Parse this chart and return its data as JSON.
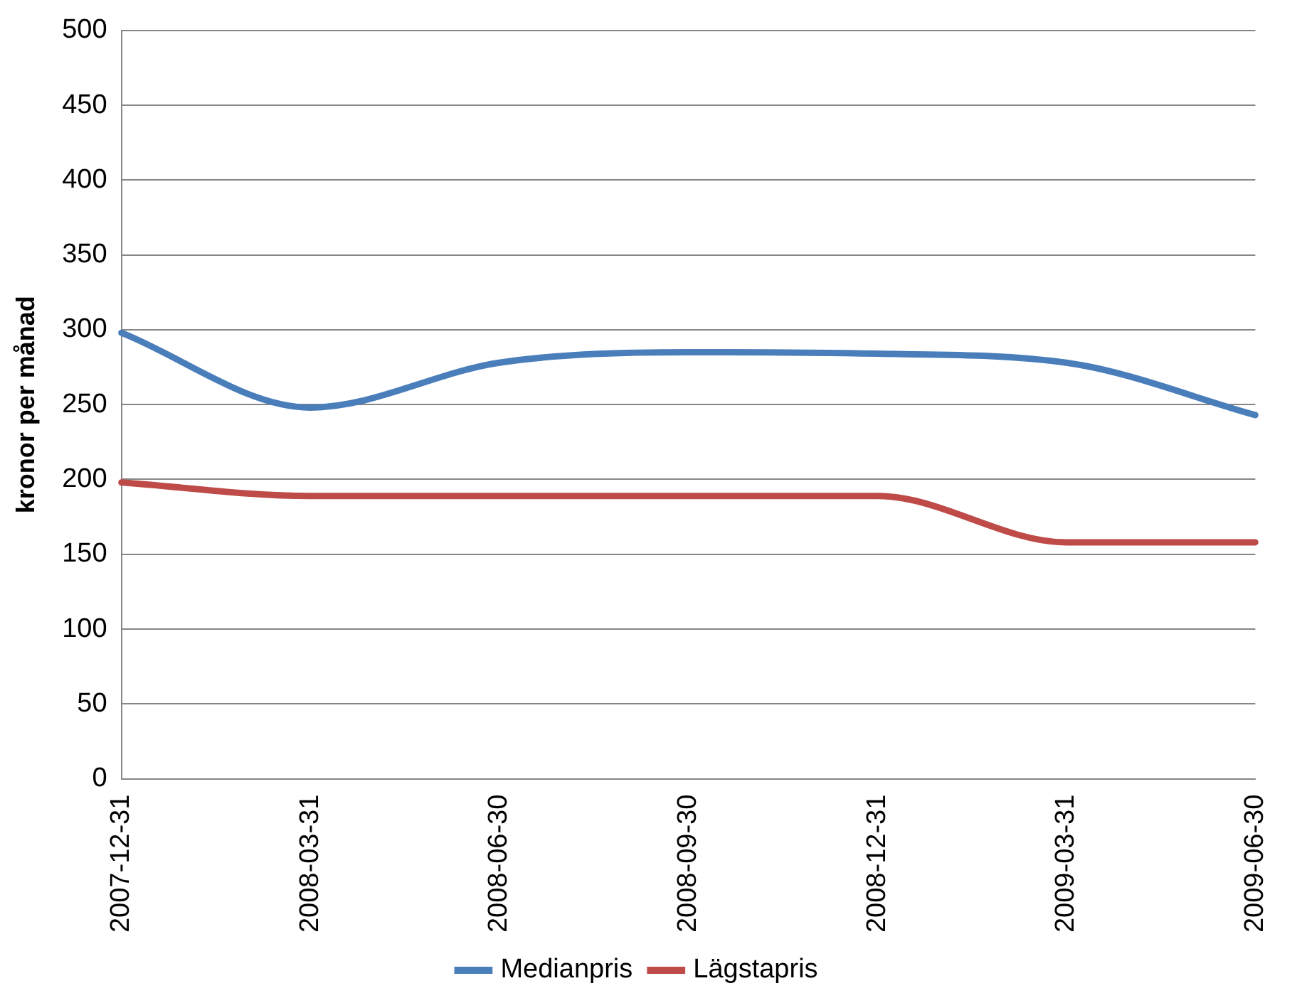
{
  "chart_data": {
    "type": "line",
    "ylabel": "kronor per månad",
    "categories": [
      "2007-12-31",
      "2008-03-31",
      "2008-06-30",
      "2008-09-30",
      "2008-12-31",
      "2009-03-31",
      "2009-06-30"
    ],
    "series": [
      {
        "name": "Medianpris",
        "color": "#4a7ebb",
        "values": [
          298,
          248,
          278,
          285,
          284,
          278,
          243
        ]
      },
      {
        "name": "Lägstapris",
        "color": "#be4b48",
        "values": [
          198,
          189,
          189,
          189,
          189,
          158,
          158
        ]
      }
    ],
    "ylim": [
      0,
      500
    ],
    "yticks": [
      0,
      50,
      100,
      150,
      200,
      250,
      300,
      350,
      400,
      450,
      500
    ],
    "grid": "y",
    "legend": "bottom",
    "marker": "none",
    "line_style": "solid"
  }
}
